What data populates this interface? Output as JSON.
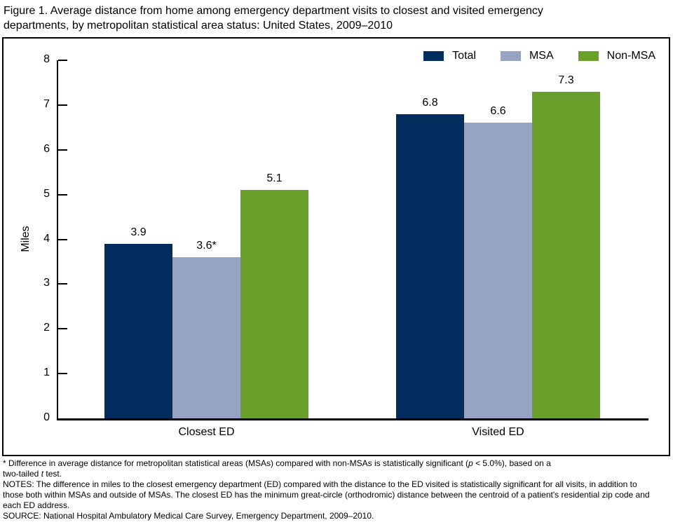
{
  "title": {
    "line1": "Figure 1. Average distance from home among emergency department visits to closest and visited emergency",
    "line2": "departments, by metropolitan statistical area status: United States, 2009–2010"
  },
  "chart_data": {
    "type": "bar",
    "title": "Figure 1. Average distance from home among emergency department visits to closest and visited emergency departments, by metropolitan statistical area status: United States, 2009–2010",
    "categories": [
      "Closest ED",
      "Visited ED"
    ],
    "series": [
      {
        "name": "Total",
        "color": "#002d5e",
        "values": [
          3.9,
          6.8
        ],
        "bar_labels": [
          "3.9",
          "6.8"
        ]
      },
      {
        "name": "MSA",
        "color": "#96a3c2",
        "values": [
          3.6,
          6.6
        ],
        "bar_labels": [
          "3.6*",
          "6.6"
        ]
      },
      {
        "name": "Non-MSA",
        "color": "#69a02c",
        "values": [
          5.1,
          7.3
        ],
        "bar_labels": [
          "5.1",
          "7.3"
        ]
      }
    ],
    "xlabel": "",
    "ylabel": "Miles",
    "ylim": [
      0,
      8
    ],
    "yticks": [
      0,
      1,
      2,
      3,
      4,
      5,
      6,
      7,
      8
    ],
    "legend_position": "top-right",
    "grid": false
  },
  "footnotes": {
    "asterisk_line1_pre": "* Difference in average distance for metropolitan statistical areas (MSAs) compared with non-MSAs is statistically significant (",
    "asterisk_p": "p",
    "asterisk_line1_post": " < 5.0%), based on a",
    "asterisk_line2_pre": "two-tailed ",
    "asterisk_t": "t",
    "asterisk_line2_post": " test.",
    "notes": "NOTES: The difference in miles to the closest emergency department (ED) compared with the distance to the ED visited is statistically significant for all visits, in addition to those both within MSAs and outside of MSAs. The closest ED has the minimum great-circle (orthodromic) distance between the centroid of a patient's residential zip code and each ED address.",
    "source": "SOURCE: National Hospital Ambulatory Medical Care Survey, Emergency Department, 2009–2010."
  }
}
